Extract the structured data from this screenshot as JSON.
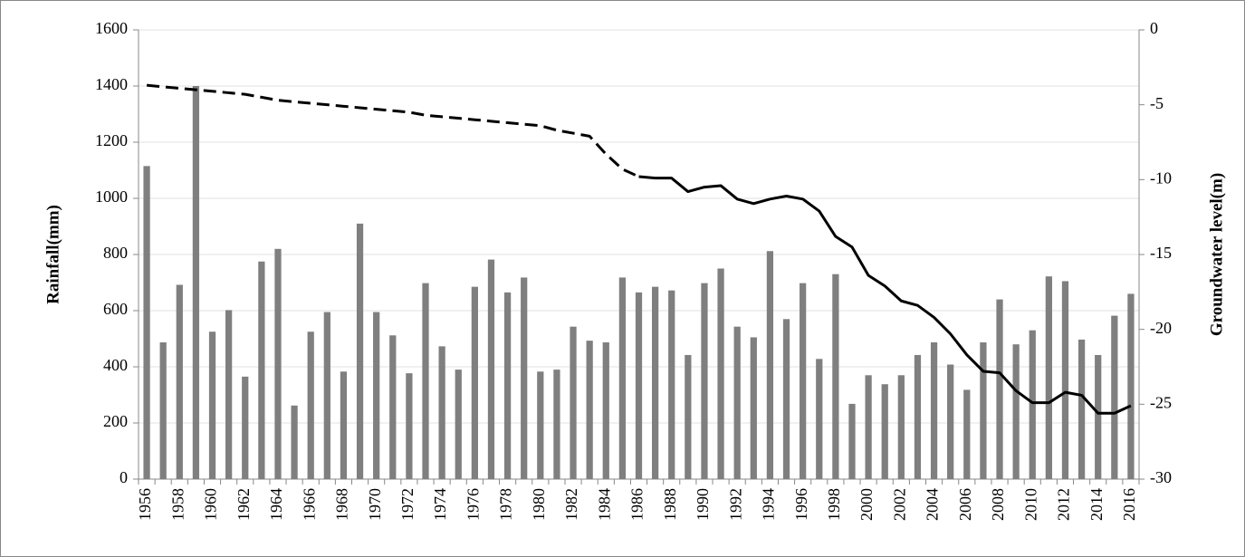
{
  "chart_data": {
    "type": "combo",
    "ylabel": "Rainfall(mm)",
    "y2label": "Groundwater level(m)",
    "categories": [
      "1956",
      null,
      "1958",
      null,
      "1960",
      null,
      "1962",
      null,
      "1964",
      null,
      "1966",
      null,
      "1968",
      null,
      "1970",
      null,
      "1972",
      null,
      "1974",
      null,
      "1976",
      null,
      "1978",
      null,
      "1980",
      null,
      "1982",
      null,
      "1984",
      null,
      "1986",
      null,
      "1988",
      null,
      "1990",
      null,
      "1992",
      null,
      "1994",
      null,
      "1996",
      null,
      "1998",
      null,
      "2000",
      null,
      "2002",
      null,
      "2004",
      null,
      "2006",
      null,
      "2008",
      null,
      "2010",
      null,
      "2012",
      null,
      "2014",
      null,
      "2016"
    ],
    "ylim": [
      0,
      1600
    ],
    "yticks": [
      0,
      200,
      400,
      600,
      800,
      1000,
      1200,
      1400,
      1600
    ],
    "y2lim": [
      -30,
      0
    ],
    "y2ticks": [
      -30,
      -25,
      -20,
      -15,
      -10,
      -5,
      0
    ],
    "grid": true,
    "series": [
      {
        "type": "bar",
        "axis": "y",
        "color": "#7f7f7f",
        "values": [
          1115,
          487,
          692,
          1400,
          525,
          602,
          365,
          775,
          820,
          262,
          525,
          595,
          383,
          910,
          595,
          512,
          377,
          698,
          473,
          390,
          685,
          782,
          665,
          718,
          383,
          390,
          543,
          493,
          487,
          718,
          665,
          685,
          672,
          442,
          698,
          750,
          543,
          505,
          812,
          570,
          698,
          428,
          730,
          268,
          370,
          338,
          370,
          442,
          487,
          408,
          318,
          487,
          640,
          480,
          530,
          722,
          705,
          497,
          442,
          582,
          660
        ]
      },
      {
        "type": "line",
        "axis": "y2",
        "color": "#000000",
        "line_style": "dashed",
        "values": [
          -3.7,
          -3.8,
          -3.9,
          -4.0,
          -4.1,
          -4.2,
          -4.3,
          -4.5,
          -4.7,
          -4.8,
          -4.9,
          -5.0,
          -5.1,
          -5.2,
          -5.3,
          -5.4,
          -5.5,
          -5.7,
          -5.8,
          -5.9,
          -6.0,
          -6.1,
          -6.2,
          -6.3,
          -6.4,
          -6.7,
          -6.9,
          -7.1,
          -8.3,
          -9.3,
          -9.8,
          null,
          null,
          null,
          null,
          null,
          null,
          null,
          null,
          null,
          null,
          null,
          null,
          null,
          null,
          null,
          null,
          null,
          null,
          null,
          null,
          null,
          null,
          null,
          null,
          null,
          null,
          null,
          null,
          null,
          null
        ]
      },
      {
        "type": "line",
        "axis": "y2",
        "color": "#000000",
        "line_style": "solid",
        "values": [
          null,
          null,
          null,
          null,
          null,
          null,
          null,
          null,
          null,
          null,
          null,
          null,
          null,
          null,
          null,
          null,
          null,
          null,
          null,
          null,
          null,
          null,
          null,
          null,
          null,
          null,
          null,
          null,
          null,
          null,
          -9.8,
          -9.9,
          -9.9,
          -10.8,
          -10.5,
          -10.4,
          -11.3,
          -11.6,
          -11.3,
          -11.1,
          -11.3,
          -12.1,
          -13.8,
          -14.5,
          -16.4,
          -17.1,
          -18.1,
          -18.4,
          -19.2,
          -20.3,
          -21.7,
          -22.8,
          -22.9,
          -24.1,
          -24.9,
          -24.9,
          -24.2,
          -24.4,
          -25.6,
          -25.6,
          -25.1
        ]
      }
    ]
  }
}
